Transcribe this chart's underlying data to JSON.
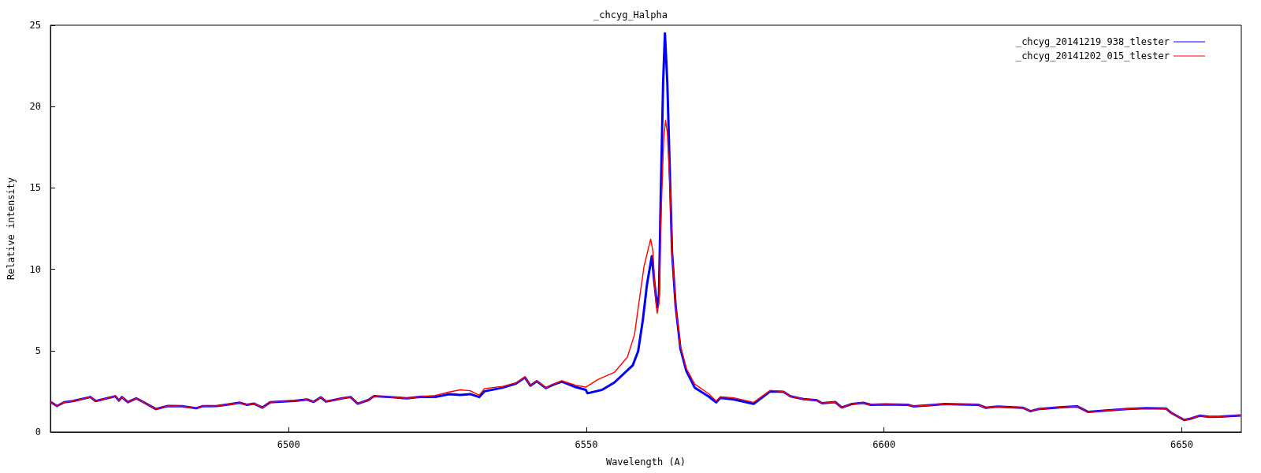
{
  "chart_data": {
    "type": "line",
    "title": "_chcyg_Halpha",
    "xlabel": "Wavelength (A)",
    "ylabel": "Relative intensity",
    "xlim": [
      6460,
      6660
    ],
    "xticks": [
      6500,
      6550,
      6600,
      6650
    ],
    "ylim": [
      0,
      25
    ],
    "yticks": [
      0,
      5,
      10,
      15,
      20,
      25
    ],
    "grid": false,
    "legend": "top right",
    "marker": "none",
    "line_style": "solid",
    "series": [
      {
        "name": "_chcyg_20141219_938_tlester",
        "color": "#0000ff",
        "x": [
          6460,
          6461.1,
          6462.3,
          6463.8,
          6466.7,
          6467.6,
          6470.9,
          6471.5,
          6472,
          6473,
          6474.4,
          6475.3,
          6477.7,
          6479.7,
          6482.1,
          6484.5,
          6485.6,
          6488,
          6490.4,
          6491.8,
          6493,
          6494.2,
          6495.6,
          6496.9,
          6498.6,
          6501,
          6503.1,
          6504.2,
          6505.4,
          6506.3,
          6509,
          6510.4,
          6511.6,
          6513.4,
          6514.3,
          6516.9,
          6519.9,
          6522.3,
          6524.6,
          6527,
          6528.8,
          6530.5,
          6532,
          6532.9,
          6535.9,
          6538.2,
          6539.7,
          6540.6,
          6541.7,
          6543.2,
          6544.4,
          6545.9,
          6548.2,
          6549.9,
          6550.2,
          6552.7,
          6554.7,
          6557.8,
          6558.7,
          6559.5,
          6560.2,
          6561,
          6561.4,
          6561.9,
          6562.2,
          6562.5,
          6562.9,
          6563.2,
          6563.6,
          6564,
          6564.4,
          6565,
          6565.8,
          6566.8,
          6568.2,
          6570.6,
          6571.8,
          6572.5,
          6574.8,
          6578.1,
          6580.9,
          6583.1,
          6584.3,
          6586.5,
          6588.7,
          6589.6,
          6591.8,
          6592.9,
          6594.6,
          6596.5,
          6597.8,
          6600.2,
          6604,
          6604.9,
          6607.7,
          6610.2,
          6612.7,
          6615.9,
          6617.1,
          6619,
          6623.3,
          6624.6,
          6625.8,
          6629.9,
          6632.4,
          6634.3,
          6637.7,
          6640.9,
          6644,
          6647.4,
          6648.3,
          6650.4,
          6651.4,
          6653,
          6654.6,
          6656.4,
          6659.9
        ],
        "values": [
          1.85,
          1.6,
          1.83,
          1.9,
          2.15,
          1.9,
          2.2,
          1.93,
          2.15,
          1.83,
          2.07,
          1.9,
          1.41,
          1.6,
          1.59,
          1.46,
          1.59,
          1.6,
          1.72,
          1.8,
          1.67,
          1.74,
          1.5,
          1.83,
          1.87,
          1.91,
          2.0,
          1.85,
          2.13,
          1.87,
          2.07,
          2.15,
          1.74,
          1.96,
          2.2,
          2.15,
          2.07,
          2.17,
          2.15,
          2.33,
          2.28,
          2.33,
          2.15,
          2.5,
          2.72,
          2.98,
          3.35,
          2.85,
          3.12,
          2.7,
          2.9,
          3.1,
          2.76,
          2.59,
          2.38,
          2.6,
          3.04,
          4.1,
          4.97,
          6.9,
          9.1,
          10.8,
          9.3,
          7.65,
          8.44,
          14.5,
          21.5,
          24.5,
          21.5,
          16.3,
          11.06,
          7.75,
          5.13,
          3.75,
          2.73,
          2.17,
          1.82,
          2.1,
          2.0,
          1.73,
          2.5,
          2.47,
          2.19,
          2.02,
          1.95,
          1.77,
          1.84,
          1.51,
          1.72,
          1.79,
          1.67,
          1.7,
          1.67,
          1.58,
          1.65,
          1.72,
          1.7,
          1.67,
          1.49,
          1.56,
          1.49,
          1.28,
          1.4,
          1.53,
          1.58,
          1.23,
          1.33,
          1.42,
          1.47,
          1.44,
          1.16,
          0.74,
          0.81,
          1.0,
          0.93,
          0.95,
          1.02
        ]
      },
      {
        "name": "_chcyg_20141202_015_tlester",
        "color": "#ff0000",
        "x": [
          6460,
          6461.1,
          6462.3,
          6463.8,
          6466.7,
          6467.6,
          6470.9,
          6471.5,
          6472,
          6473,
          6474.4,
          6475.3,
          6477.7,
          6479.7,
          6482.1,
          6484.5,
          6485.6,
          6488,
          6490.4,
          6491.8,
          6493,
          6494.2,
          6495.6,
          6496.9,
          6498.6,
          6501,
          6503.1,
          6504.2,
          6505.4,
          6506.3,
          6509,
          6510.4,
          6511.6,
          6513.4,
          6514.3,
          6516.9,
          6519.9,
          6522.3,
          6524.6,
          6527,
          6528.8,
          6530.5,
          6532,
          6532.9,
          6535.9,
          6538.2,
          6539.7,
          6540.6,
          6541.7,
          6543.2,
          6544.4,
          6545.9,
          6548.2,
          6549.9,
          6551.9,
          6554.7,
          6556.9,
          6558.1,
          6558.7,
          6559.7,
          6560.8,
          6561.2,
          6561.6,
          6561.9,
          6562.2,
          6562.5,
          6563,
          6563.3,
          6563.6,
          6564,
          6564.4,
          6565,
          6565.8,
          6566.8,
          6568.2,
          6570.6,
          6571.8,
          6572.5,
          6574.8,
          6578.1,
          6580.9,
          6583.1,
          6584.3,
          6586.5,
          6588.7,
          6589.6,
          6591.8,
          6592.9,
          6594.6,
          6596.5,
          6597.8,
          6600.2,
          6604,
          6604.9,
          6607.7,
          6610.2,
          6612.7,
          6615.9,
          6617.1,
          6619,
          6623.3,
          6624.6,
          6625.8,
          6629.9,
          6632.4,
          6634.3,
          6637.7,
          6640.9,
          6644,
          6647.4,
          6648.3,
          6650.4,
          6651.4,
          6653,
          6654.6,
          6656.4,
          6659.9
        ],
        "values": [
          1.85,
          1.6,
          1.83,
          1.9,
          2.15,
          1.9,
          2.2,
          1.93,
          2.15,
          1.83,
          2.07,
          1.9,
          1.41,
          1.6,
          1.59,
          1.46,
          1.59,
          1.6,
          1.72,
          1.8,
          1.67,
          1.74,
          1.5,
          1.83,
          1.87,
          1.91,
          2.0,
          1.85,
          2.13,
          1.87,
          2.07,
          2.15,
          1.74,
          1.96,
          2.2,
          2.15,
          2.07,
          2.17,
          2.24,
          2.46,
          2.59,
          2.54,
          2.26,
          2.67,
          2.8,
          3.02,
          3.37,
          2.87,
          3.15,
          2.72,
          2.93,
          3.15,
          2.87,
          2.76,
          3.22,
          3.66,
          4.6,
          6.0,
          7.6,
          10.2,
          11.85,
          11.06,
          8.26,
          7.3,
          7.9,
          12.8,
          18.0,
          19.15,
          18.4,
          15.4,
          11.06,
          7.75,
          5.3,
          3.9,
          2.95,
          2.34,
          1.9,
          2.17,
          2.1,
          1.82,
          2.56,
          2.49,
          2.19,
          2.02,
          1.95,
          1.77,
          1.84,
          1.51,
          1.72,
          1.79,
          1.67,
          1.7,
          1.67,
          1.58,
          1.65,
          1.72,
          1.7,
          1.67,
          1.49,
          1.56,
          1.49,
          1.28,
          1.4,
          1.53,
          1.58,
          1.23,
          1.33,
          1.42,
          1.47,
          1.44,
          1.16,
          0.74,
          0.81,
          1.0,
          0.93,
          0.95,
          1.02
        ]
      }
    ]
  }
}
